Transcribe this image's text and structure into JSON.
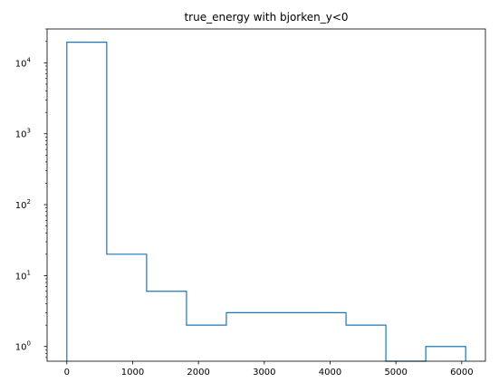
{
  "chart_data": {
    "type": "histogram",
    "title": "true_energy with bjorken_y<0",
    "xlabel": "",
    "ylabel": "",
    "yscale": "log",
    "histtype": "step",
    "color": "#1f77b4",
    "bin_edges": [
      0,
      606,
      1212,
      1818,
      2424,
      3030,
      3636,
      4242,
      4848,
      5454,
      6060
    ],
    "counts": [
      19500,
      20,
      6,
      2,
      3,
      3,
      3,
      2,
      0,
      1
    ],
    "xlim": [
      -300,
      6360
    ],
    "ylim": [
      0.62,
      30000
    ],
    "x_ticks": [
      {
        "value": 0,
        "label": "0"
      },
      {
        "value": 1000,
        "label": "1000"
      },
      {
        "value": 2000,
        "label": "2000"
      },
      {
        "value": 3000,
        "label": "3000"
      },
      {
        "value": 4000,
        "label": "4000"
      },
      {
        "value": 5000,
        "label": "5000"
      },
      {
        "value": 6000,
        "label": "6000"
      }
    ],
    "y_ticks": [
      {
        "value": 1,
        "base": "10",
        "exp": "0"
      },
      {
        "value": 10,
        "base": "10",
        "exp": "1"
      },
      {
        "value": 100,
        "base": "10",
        "exp": "2"
      },
      {
        "value": 1000,
        "base": "10",
        "exp": "3"
      },
      {
        "value": 10000,
        "base": "10",
        "exp": "4"
      }
    ],
    "grid": false,
    "legend": "none"
  }
}
